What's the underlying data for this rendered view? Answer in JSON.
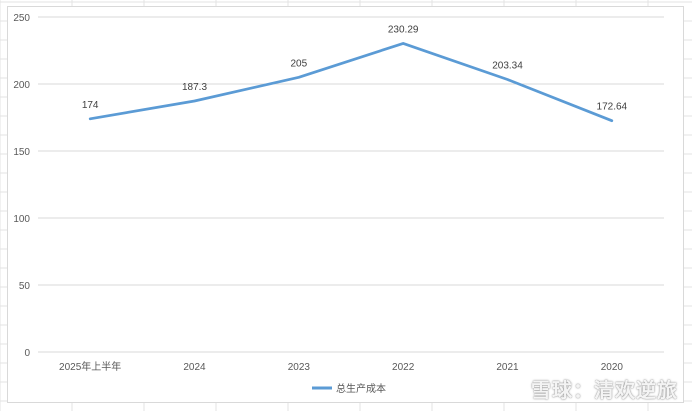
{
  "chart_data": {
    "type": "line",
    "categories": [
      "2025年上半年",
      "2024",
      "2023",
      "2022",
      "2021",
      "2020"
    ],
    "series": [
      {
        "name": "总生产成本",
        "values": [
          174,
          187.3,
          205,
          230.29,
          203.34,
          172.64
        ],
        "color": "#5b9bd5"
      }
    ],
    "data_labels": [
      "174",
      "187.3",
      "205",
      "230.29",
      "203.34",
      "172.64"
    ],
    "ylim": [
      0,
      250
    ],
    "yticks": [
      0,
      50,
      100,
      150,
      200,
      250
    ],
    "grid": true,
    "legend_position": "bottom"
  },
  "watermark": {
    "text": "雪球：清欢逆旅",
    "icon": "snowball-logo-icon"
  }
}
